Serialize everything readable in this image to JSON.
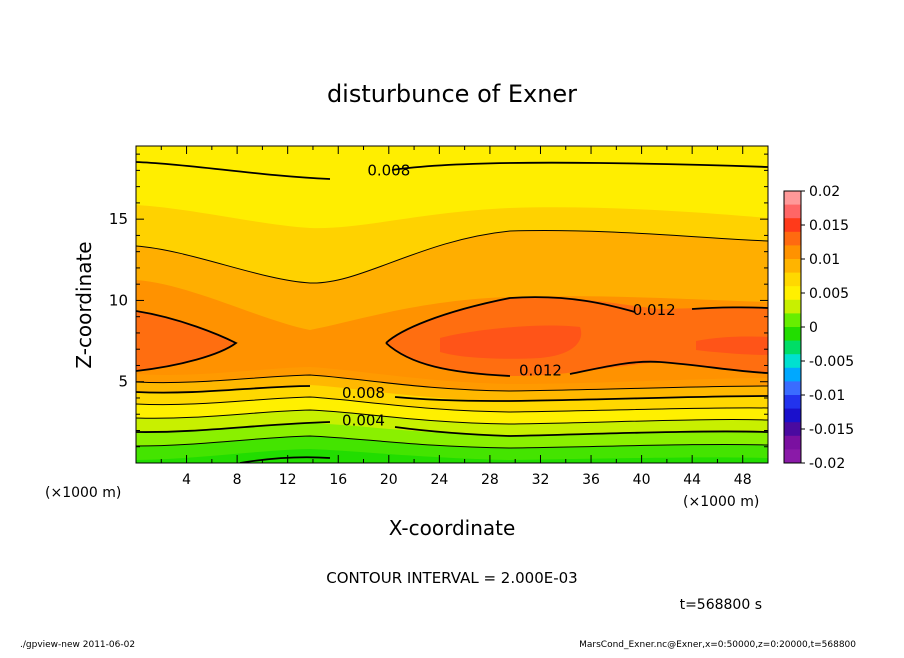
{
  "chart_data": {
    "type": "heatmap",
    "title": "disturbunce of Exner",
    "xlabel": "X-coordinate",
    "ylabel": "Z-coordinate",
    "x_unit_left": "(×1000 m)",
    "x_unit_right": "(×1000 m)",
    "x_ticks": [
      "4",
      "8",
      "12",
      "16",
      "20",
      "24",
      "28",
      "32",
      "36",
      "40",
      "44",
      "48"
    ],
    "y_ticks": [
      "5",
      "10",
      "15"
    ],
    "xlim": [
      0,
      50
    ],
    "ylim": [
      0,
      19.5
    ],
    "colorbar_ticks": [
      "0.02",
      "0.015",
      "0.01",
      "0.005",
      "0",
      "-0.005",
      "-0.01",
      "-0.015",
      "-0.02"
    ],
    "colorbar_range": [
      -0.02,
      0.02
    ],
    "contour_labels": [
      {
        "text": "0.008",
        "x": 20,
        "z": 18.0
      },
      {
        "text": "0.012",
        "x": 41,
        "z": 9.4
      },
      {
        "text": "0.012",
        "x": 32,
        "z": 5.7
      },
      {
        "text": "0.008",
        "x": 18,
        "z": 4.3
      },
      {
        "text": "0.004",
        "x": 18,
        "z": 2.6
      }
    ],
    "contour_interval": "CONTOUR INTERVAL = 2.000E-03",
    "time_label": "t=568800 s",
    "colors": {
      "green": "#22dd00",
      "light_green": "#66ee00",
      "yellow_green": "#c8f000",
      "yellow": "#ffee00",
      "light_orange": "#ffd200",
      "orange": "#ffae00",
      "dark_orange": "#ff9200",
      "red_orange": "#ff6e10",
      "red": "#ff5418"
    }
  },
  "footer": {
    "left": "./gpview-new   2011-06-02",
    "right": "MarsCond_Exner.nc@Exner,x=0:50000,z=0:20000,t=568800"
  }
}
